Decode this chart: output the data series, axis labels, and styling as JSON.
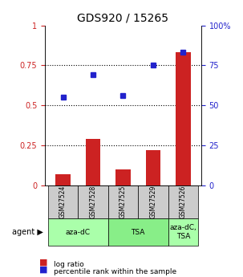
{
  "title": "GDS920 / 15265",
  "samples": [
    "GSM27524",
    "GSM27528",
    "GSM27525",
    "GSM27529",
    "GSM27526"
  ],
  "log_ratio": [
    0.07,
    0.29,
    0.1,
    0.22,
    0.83
  ],
  "percentile_rank": [
    0.55,
    0.69,
    0.56,
    0.75,
    0.83
  ],
  "bar_color": "#cc2222",
  "dot_color": "#2222cc",
  "ylim_left": [
    0,
    1.0
  ],
  "ylim_right": [
    0,
    100
  ],
  "yticks_left": [
    0,
    0.25,
    0.5,
    0.75,
    1.0
  ],
  "yticks_right": [
    0,
    25,
    50,
    75,
    100
  ],
  "ytick_labels_left": [
    "0",
    "0.25",
    "0.5",
    "0.75",
    "1"
  ],
  "ytick_labels_right": [
    "0",
    "25",
    "50",
    "75",
    "100%"
  ],
  "agent_groups": [
    {
      "label": "aza-dC",
      "color": "#aaffaa",
      "start": 0,
      "end": 2
    },
    {
      "label": "TSA",
      "color": "#88ee88",
      "start": 2,
      "end": 4
    },
    {
      "label": "aza-dC,\nTSA",
      "color": "#aaffaa",
      "start": 4,
      "end": 5
    }
  ],
  "agent_label": "agent",
  "legend_bar_label": "log ratio",
  "legend_dot_label": "percentile rank within the sample",
  "x_bg_color": "#cccccc",
  "bar_width": 0.5
}
